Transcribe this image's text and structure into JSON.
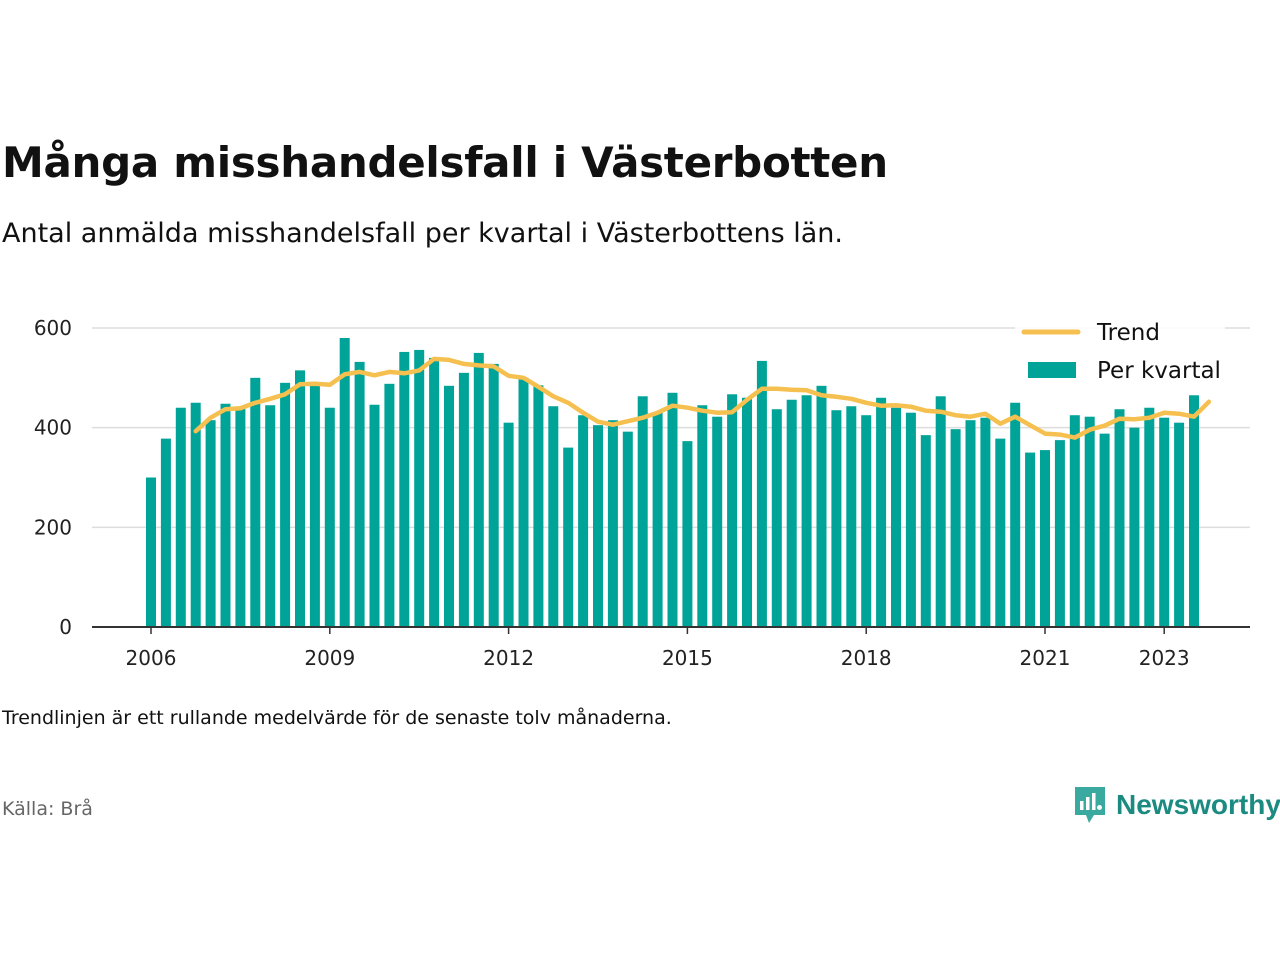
{
  "title": "Många misshandelsfall i Västerbotten",
  "subtitle": "Antal anmälda misshandelsfall per kvartal i Västerbottens län.",
  "note": "Trendlinjen är ett rullande medelvärde för de senaste tolv månaderna.",
  "source": "Källa: Brå",
  "brand": {
    "name": "Newsworthy",
    "icon": "newsworthy-logo-icon"
  },
  "colors": {
    "bars": "#00a398",
    "trend": "#f5c04f",
    "grid": "#dddddd",
    "axis": "#333333"
  },
  "chart_data": {
    "type": "bar",
    "x_type": "quarter",
    "start": "2006-Q1",
    "x_ticks": [
      "2006",
      "2009",
      "2012",
      "2015",
      "2018",
      "2021",
      "2023"
    ],
    "y_ticks": [
      0,
      200,
      400,
      600
    ],
    "ylim": [
      0,
      650
    ],
    "grid": true,
    "legend_position": "top-right",
    "series": [
      {
        "name": "Per kvartal",
        "type": "bar",
        "color": "#00a398",
        "values": [
          300,
          378,
          440,
          450,
          415,
          448,
          440,
          500,
          445,
          490,
          515,
          490,
          440,
          580,
          532,
          446,
          488,
          552,
          556,
          540,
          484,
          510,
          550,
          528,
          410,
          500,
          485,
          443,
          360,
          425,
          405,
          415,
          392,
          463,
          430,
          470,
          373,
          445,
          422,
          467,
          460,
          534,
          437,
          456,
          465,
          484,
          435,
          443,
          425,
          460,
          440,
          430,
          385,
          463,
          397,
          415,
          420,
          378,
          450,
          350,
          355,
          375,
          425,
          422,
          388,
          437,
          400,
          440,
          420,
          410,
          465
        ]
      },
      {
        "name": "Trend",
        "type": "line",
        "color": "#f5c04f",
        "start_index": 3,
        "values": [
          393,
          420,
          437,
          439,
          450,
          458,
          467,
          487,
          488,
          486,
          507,
          512,
          505,
          512,
          509,
          515,
          538,
          536,
          528,
          525,
          523,
          504,
          500,
          482,
          463,
          450,
          430,
          412,
          406,
          413,
          420,
          430,
          444,
          440,
          434,
          430,
          431,
          456,
          478,
          478,
          476,
          475,
          465,
          462,
          458,
          450,
          444,
          445,
          442,
          434,
          432,
          425,
          422,
          428,
          408,
          422,
          405,
          388,
          386,
          380,
          396,
          404,
          418,
          417,
          420,
          430,
          428,
          422,
          452
        ]
      }
    ]
  }
}
